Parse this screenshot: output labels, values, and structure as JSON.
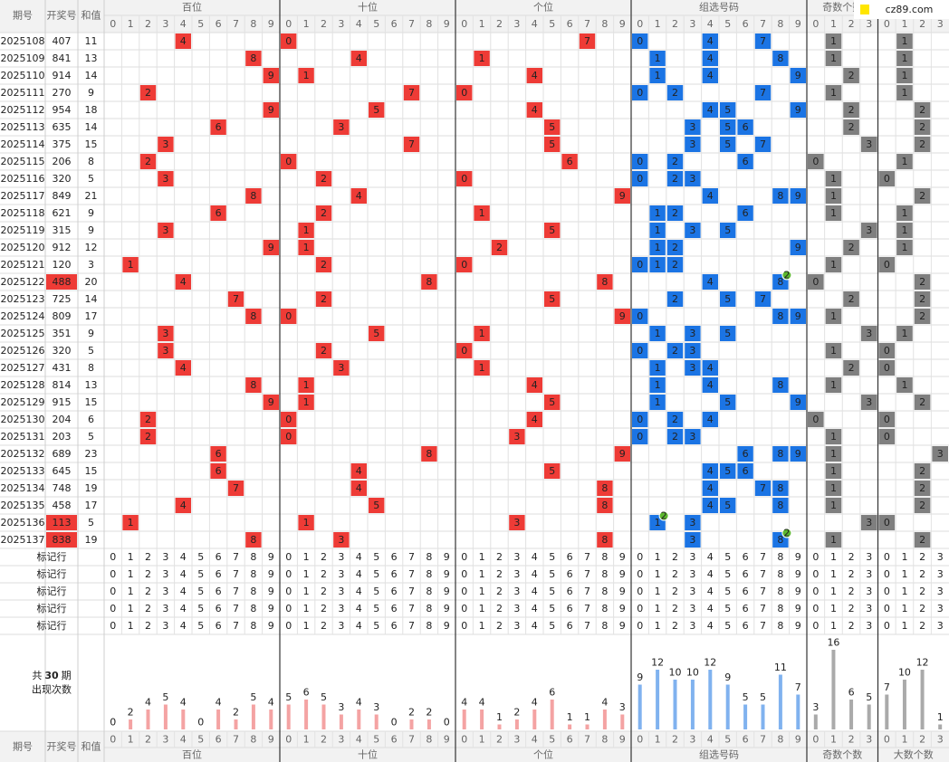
{
  "header": {
    "issue": "期号",
    "number": "开奖号",
    "sum": "和值",
    "sections": [
      {
        "name": "百位",
        "digits": [
          0,
          1,
          2,
          3,
          4,
          5,
          6,
          7,
          8,
          9
        ]
      },
      {
        "name": "十位",
        "digits": [
          0,
          1,
          2,
          3,
          4,
          5,
          6,
          7,
          8,
          9
        ]
      },
      {
        "name": "个位",
        "digits": [
          0,
          1,
          2,
          3,
          4,
          5,
          6,
          7,
          8,
          9
        ]
      },
      {
        "name": "组选号码",
        "digits": [
          0,
          1,
          2,
          3,
          4,
          5,
          6,
          7,
          8,
          9
        ]
      },
      {
        "name": "奇数个数",
        "digits": [
          0,
          1,
          2,
          3
        ]
      },
      {
        "name": "大数个数",
        "digits": [
          0,
          1,
          2,
          3
        ]
      }
    ]
  },
  "logo": "cz89.com",
  "rows": [
    {
      "issue": "2025108",
      "number": "407",
      "sum": 11,
      "digits": [
        4,
        0,
        7
      ],
      "odd": 1,
      "big": 1
    },
    {
      "issue": "2025109",
      "number": "841",
      "sum": 13,
      "digits": [
        8,
        4,
        1
      ],
      "odd": 1,
      "big": 1
    },
    {
      "issue": "2025110",
      "number": "914",
      "sum": 14,
      "digits": [
        9,
        1,
        4
      ],
      "odd": 2,
      "big": 1
    },
    {
      "issue": "2025111",
      "number": "270",
      "sum": 9,
      "digits": [
        2,
        7,
        0
      ],
      "odd": 1,
      "big": 1
    },
    {
      "issue": "2025112",
      "number": "954",
      "sum": 18,
      "digits": [
        9,
        5,
        4
      ],
      "odd": 2,
      "big": 2
    },
    {
      "issue": "2025113",
      "number": "635",
      "sum": 14,
      "digits": [
        6,
        3,
        5
      ],
      "odd": 2,
      "big": 2
    },
    {
      "issue": "2025114",
      "number": "375",
      "sum": 15,
      "digits": [
        3,
        7,
        5
      ],
      "odd": 3,
      "big": 2
    },
    {
      "issue": "2025115",
      "number": "206",
      "sum": 8,
      "digits": [
        2,
        0,
        6
      ],
      "odd": 0,
      "big": 1
    },
    {
      "issue": "2025116",
      "number": "320",
      "sum": 5,
      "digits": [
        3,
        2,
        0
      ],
      "odd": 1,
      "big": 0
    },
    {
      "issue": "2025117",
      "number": "849",
      "sum": 21,
      "digits": [
        8,
        4,
        9
      ],
      "odd": 1,
      "big": 2
    },
    {
      "issue": "2025118",
      "number": "621",
      "sum": 9,
      "digits": [
        6,
        2,
        1
      ],
      "odd": 1,
      "big": 1
    },
    {
      "issue": "2025119",
      "number": "315",
      "sum": 9,
      "digits": [
        3,
        1,
        5
      ],
      "odd": 3,
      "big": 1
    },
    {
      "issue": "2025120",
      "number": "912",
      "sum": 12,
      "digits": [
        9,
        1,
        2
      ],
      "odd": 2,
      "big": 1
    },
    {
      "issue": "2025121",
      "number": "120",
      "sum": 3,
      "digits": [
        1,
        2,
        0
      ],
      "odd": 1,
      "big": 0
    },
    {
      "issue": "2025122",
      "number": "488",
      "sum": 20,
      "digits": [
        4,
        8,
        8
      ],
      "odd": 0,
      "big": 2,
      "repeat": 2
    },
    {
      "issue": "2025123",
      "number": "725",
      "sum": 14,
      "digits": [
        7,
        2,
        5
      ],
      "odd": 2,
      "big": 2
    },
    {
      "issue": "2025124",
      "number": "809",
      "sum": 17,
      "digits": [
        8,
        0,
        9
      ],
      "odd": 1,
      "big": 2
    },
    {
      "issue": "2025125",
      "number": "351",
      "sum": 9,
      "digits": [
        3,
        5,
        1
      ],
      "odd": 3,
      "big": 1
    },
    {
      "issue": "2025126",
      "number": "320",
      "sum": 5,
      "digits": [
        3,
        2,
        0
      ],
      "odd": 1,
      "big": 0
    },
    {
      "issue": "2025127",
      "number": "431",
      "sum": 8,
      "digits": [
        4,
        3,
        1
      ],
      "odd": 2,
      "big": 0
    },
    {
      "issue": "2025128",
      "number": "814",
      "sum": 13,
      "digits": [
        8,
        1,
        4
      ],
      "odd": 1,
      "big": 1
    },
    {
      "issue": "2025129",
      "number": "915",
      "sum": 15,
      "digits": [
        9,
        1,
        5
      ],
      "odd": 3,
      "big": 2
    },
    {
      "issue": "2025130",
      "number": "204",
      "sum": 6,
      "digits": [
        2,
        0,
        4
      ],
      "odd": 0,
      "big": 0
    },
    {
      "issue": "2025131",
      "number": "203",
      "sum": 5,
      "digits": [
        2,
        0,
        3
      ],
      "odd": 1,
      "big": 0
    },
    {
      "issue": "2025132",
      "number": "689",
      "sum": 23,
      "digits": [
        6,
        8,
        9
      ],
      "odd": 1,
      "big": 3
    },
    {
      "issue": "2025133",
      "number": "645",
      "sum": 15,
      "digits": [
        6,
        4,
        5
      ],
      "odd": 1,
      "big": 2
    },
    {
      "issue": "2025134",
      "number": "748",
      "sum": 19,
      "digits": [
        7,
        4,
        8
      ],
      "odd": 1,
      "big": 2
    },
    {
      "issue": "2025135",
      "number": "458",
      "sum": 17,
      "digits": [
        4,
        5,
        8
      ],
      "odd": 1,
      "big": 2
    },
    {
      "issue": "2025136",
      "number": "113",
      "sum": 5,
      "digits": [
        1,
        1,
        3
      ],
      "odd": 3,
      "big": 0,
      "repeat": 2
    },
    {
      "issue": "2025137",
      "number": "838",
      "sum": 19,
      "digits": [
        8,
        3,
        8
      ],
      "odd": 1,
      "big": 2,
      "repeat": 2
    }
  ],
  "marker_rows": [
    "标记行",
    "标记行",
    "标记行",
    "标记行",
    "标记行"
  ],
  "stats": {
    "prefix": "共",
    "periods": 30,
    "suffix": "期",
    "label": "出现次数",
    "counts": [
      [
        0,
        2,
        4,
        5,
        4,
        0,
        4,
        2,
        5,
        4
      ],
      [
        5,
        6,
        5,
        3,
        4,
        3,
        0,
        2,
        2,
        0
      ],
      [
        4,
        4,
        1,
        2,
        4,
        6,
        1,
        1,
        4,
        3
      ],
      [
        9,
        12,
        10,
        10,
        12,
        9,
        5,
        5,
        11,
        7
      ],
      [
        3,
        16,
        6,
        5
      ],
      [
        7,
        10,
        12,
        1
      ]
    ]
  }
}
